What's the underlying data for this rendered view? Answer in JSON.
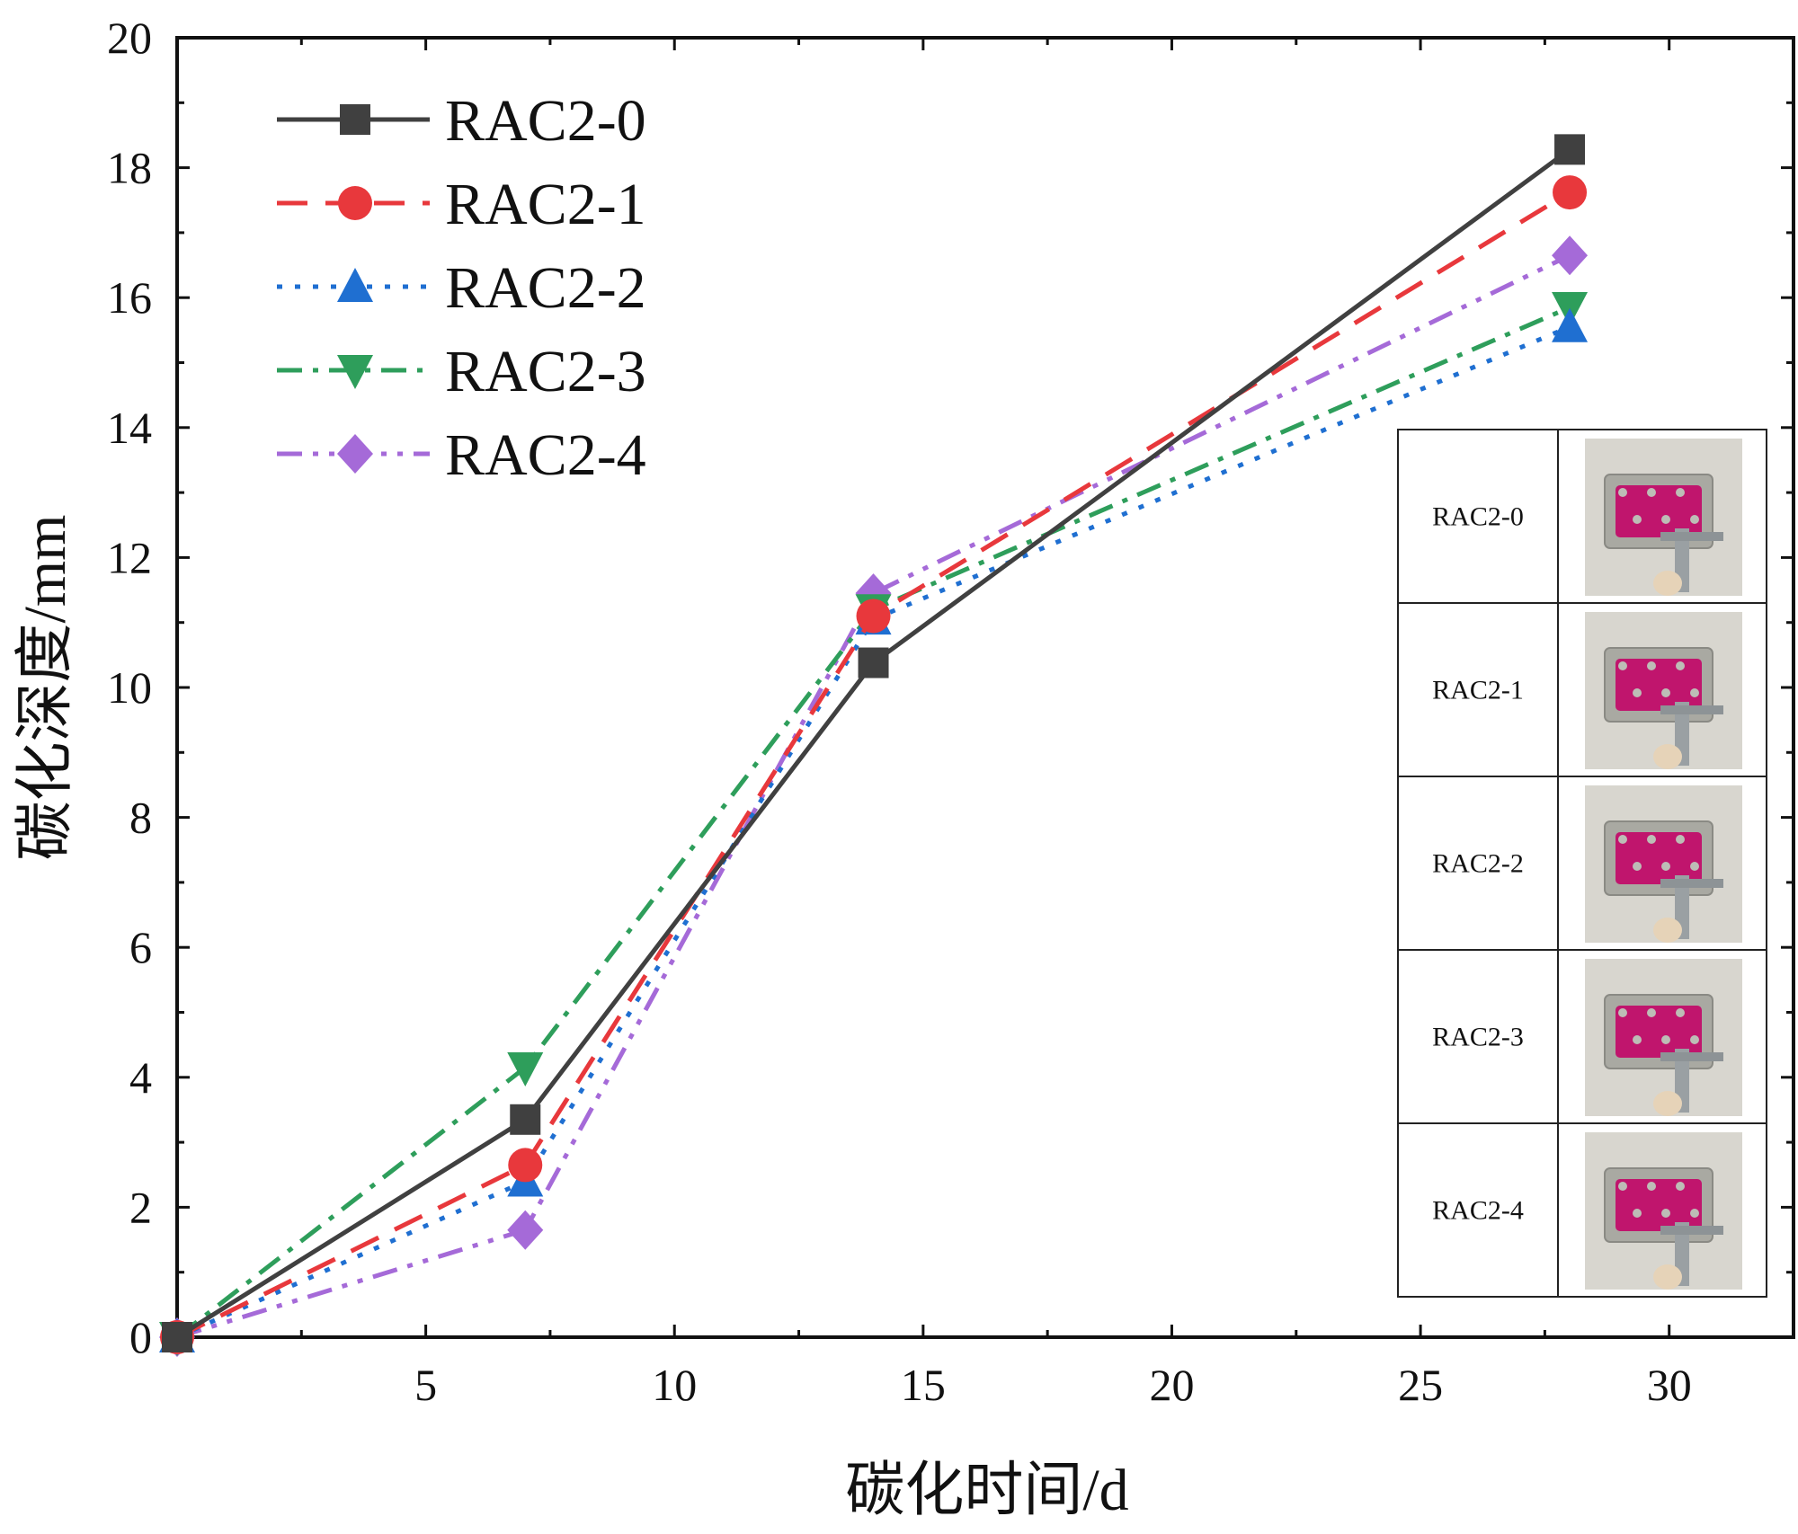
{
  "chart_data": {
    "type": "line",
    "title": "",
    "xlabel": "碳化时间/d",
    "ylabel": "碳化深度/mm",
    "xlim": [
      0,
      32.5
    ],
    "ylim": [
      0,
      20
    ],
    "xticks": [
      5,
      10,
      15,
      20,
      25,
      30
    ],
    "yticks": [
      0,
      2,
      4,
      6,
      8,
      10,
      12,
      14,
      16,
      18,
      20
    ],
    "x": [
      0,
      7,
      14,
      28
    ],
    "legend_position": "top-left",
    "series": [
      {
        "name": "RAC2-0",
        "values": [
          0,
          3.35,
          10.38,
          18.28
        ],
        "color": "#404040",
        "dash": "solid",
        "marker": "square"
      },
      {
        "name": "RAC2-1",
        "values": [
          0,
          2.65,
          11.1,
          17.62
        ],
        "color": "#e8383c",
        "dash": "dash",
        "marker": "circle"
      },
      {
        "name": "RAC2-2",
        "values": [
          0,
          2.4,
          11.05,
          15.55
        ],
        "color": "#1f6fd1",
        "dash": "dot",
        "marker": "triangle-up"
      },
      {
        "name": "RAC2-3",
        "values": [
          0,
          4.15,
          11.2,
          15.85
        ],
        "color": "#2e9e5b",
        "dash": "dashdot",
        "marker": "triangle-down"
      },
      {
        "name": "RAC2-4",
        "values": [
          0,
          1.65,
          11.45,
          16.65
        ],
        "color": "#a56ad8",
        "dash": "dashdotdot",
        "marker": "diamond"
      }
    ],
    "inset_table": {
      "rows": [
        "RAC2-0",
        "RAC2-1",
        "RAC2-2",
        "RAC2-3",
        "RAC2-4"
      ],
      "photo_description_icon": "specimen-photo"
    }
  }
}
